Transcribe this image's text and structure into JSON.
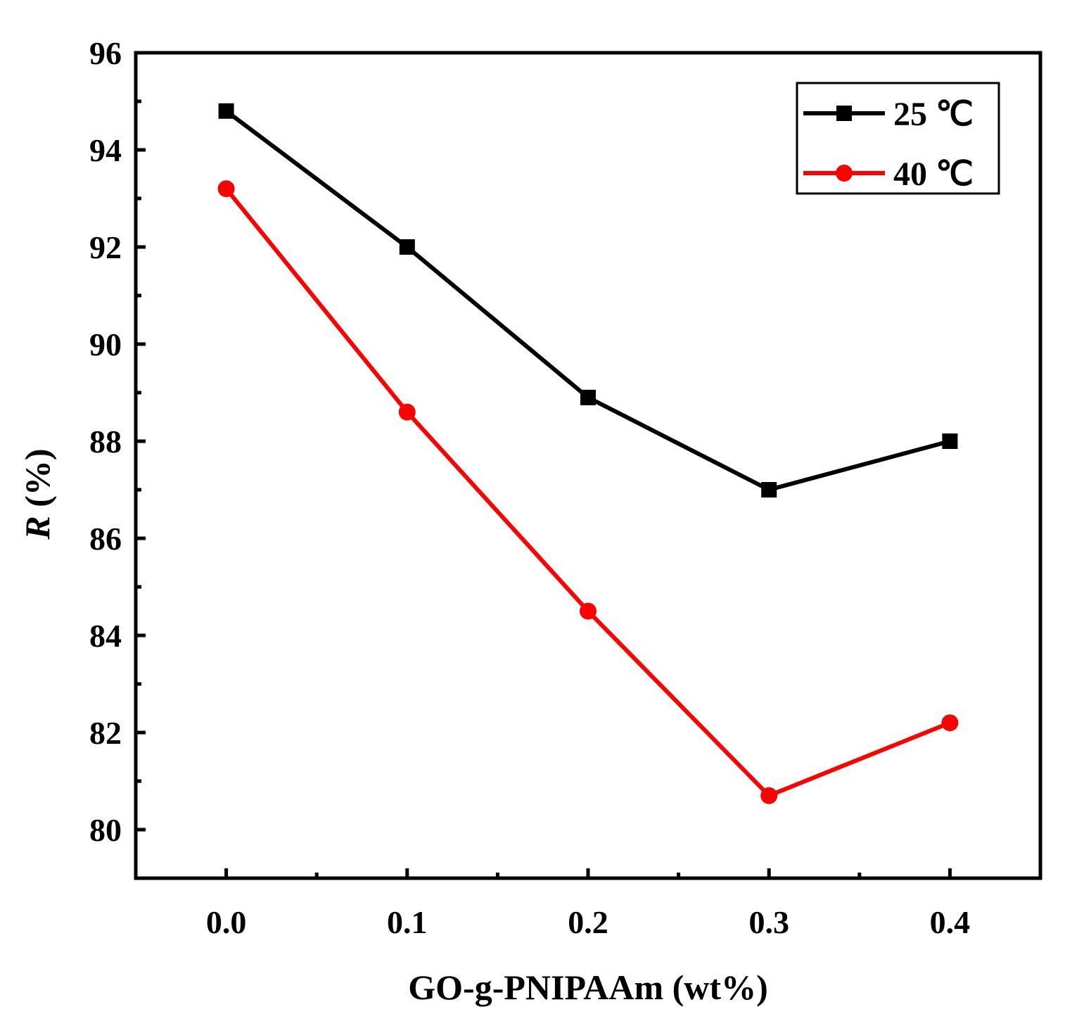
{
  "chart_data": {
    "type": "line",
    "xlabel": "GO-g-PNIPAAm (wt%)",
    "ylabel_symbol": "R",
    "ylabel_unit": " (%)",
    "xlim": [
      -0.05,
      0.45
    ],
    "ylim": [
      79,
      96
    ],
    "xticks": [
      0.0,
      0.1,
      0.2,
      0.3,
      0.4
    ],
    "xtick_labels": [
      "0.0",
      "0.1",
      "0.2",
      "0.3",
      "0.4"
    ],
    "yticks": [
      80,
      82,
      84,
      86,
      88,
      90,
      92,
      94,
      96
    ],
    "ytick_labels": [
      "80",
      "82",
      "84",
      "86",
      "88",
      "90",
      "92",
      "94",
      "96"
    ],
    "grid": false,
    "legend_position": "top-right",
    "series": [
      {
        "name": "25 ℃",
        "color": "#000000",
        "marker": "square",
        "x": [
          0.0,
          0.1,
          0.2,
          0.3,
          0.4
        ],
        "values": [
          94.8,
          92.0,
          88.9,
          87.0,
          88.0
        ]
      },
      {
        "name": "40 ℃",
        "color": "#ff0000",
        "marker": "circle",
        "x": [
          0.0,
          0.1,
          0.2,
          0.3,
          0.4
        ],
        "values": [
          93.2,
          88.6,
          84.5,
          80.7,
          82.2
        ]
      }
    ]
  }
}
